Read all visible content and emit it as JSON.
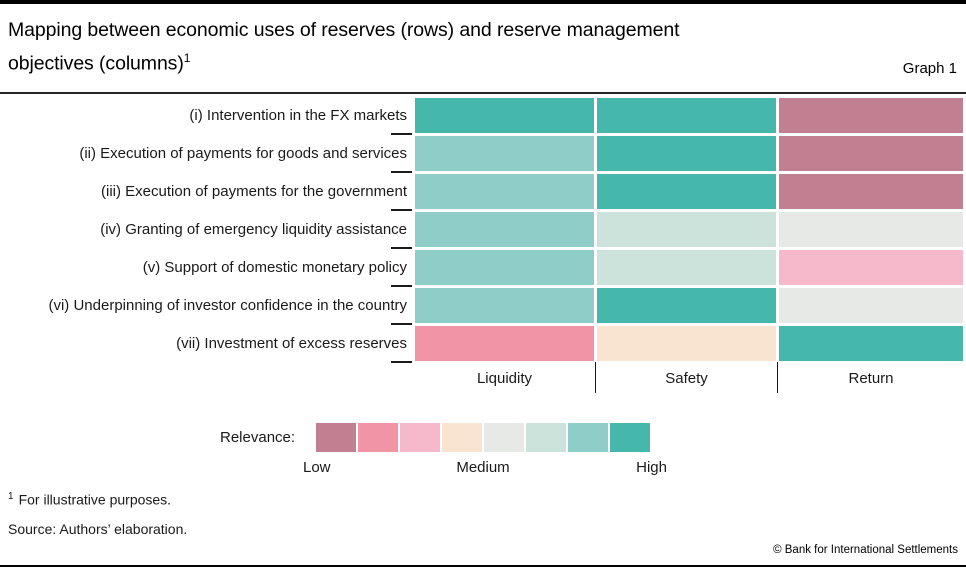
{
  "header": {
    "title_line1": "Mapping between economic uses of reserves (rows) and reserve management",
    "title_line2": "objectives (columns)",
    "title_footnote_marker": "1",
    "graph_label": "Graph 1"
  },
  "chart_data": {
    "type": "heatmap",
    "title": "Mapping between economic uses of reserves (rows) and reserve management objectives (columns)",
    "columns": [
      "Liquidity",
      "Safety",
      "Return"
    ],
    "rows": [
      {
        "label": "(i) Intervention in the FX markets",
        "levels": [
          8,
          8,
          1
        ],
        "relevance": [
          "high",
          "high",
          "low"
        ]
      },
      {
        "label": "(ii) Execution of payments for goods and services",
        "levels": [
          7,
          8,
          1
        ],
        "relevance": [
          "medium-high",
          "high",
          "low"
        ]
      },
      {
        "label": "(iii) Execution of payments for the government",
        "levels": [
          7,
          8,
          1
        ],
        "relevance": [
          "medium-high",
          "high",
          "low"
        ]
      },
      {
        "label": "(iv) Granting of emergency liquidity assistance",
        "levels": [
          7,
          6,
          5
        ],
        "relevance": [
          "medium-high",
          "medium",
          "medium"
        ]
      },
      {
        "label": "(v) Support of domestic monetary policy",
        "levels": [
          7,
          6,
          3
        ],
        "relevance": [
          "medium-high",
          "medium",
          "low-medium"
        ]
      },
      {
        "label": "(vi) Underpinning of investor confidence in the country",
        "levels": [
          7,
          8,
          5
        ],
        "relevance": [
          "medium-high",
          "high",
          "medium"
        ]
      },
      {
        "label": "(vii) Investment of excess reserves",
        "levels": [
          2,
          4,
          8
        ],
        "relevance": [
          "low",
          "medium",
          "high"
        ]
      }
    ],
    "scale": {
      "label": "Relevance:",
      "levels": 8,
      "palette": [
        "#c08091",
        "#f194a6",
        "#f6b9cb",
        "#f9e4d1",
        "#e7e9e6",
        "#cbe3da",
        "#8ecdc8",
        "#46b8ab"
      ],
      "tick_labels": [
        "Low",
        "Medium",
        "High"
      ]
    },
    "legend_position": "bottom"
  },
  "legend": {
    "label": "Relevance:",
    "low": "Low",
    "medium": "Medium",
    "high": "High"
  },
  "footnotes": {
    "marker": "1",
    "text": "For illustrative purposes."
  },
  "source": "Source: Authors’ elaboration.",
  "copyright": "© Bank for International Settlements",
  "colors": {
    "accent_high": "#46b8ab",
    "accent_low": "#c08091",
    "rule": "#262626",
    "bar": "#000000"
  }
}
